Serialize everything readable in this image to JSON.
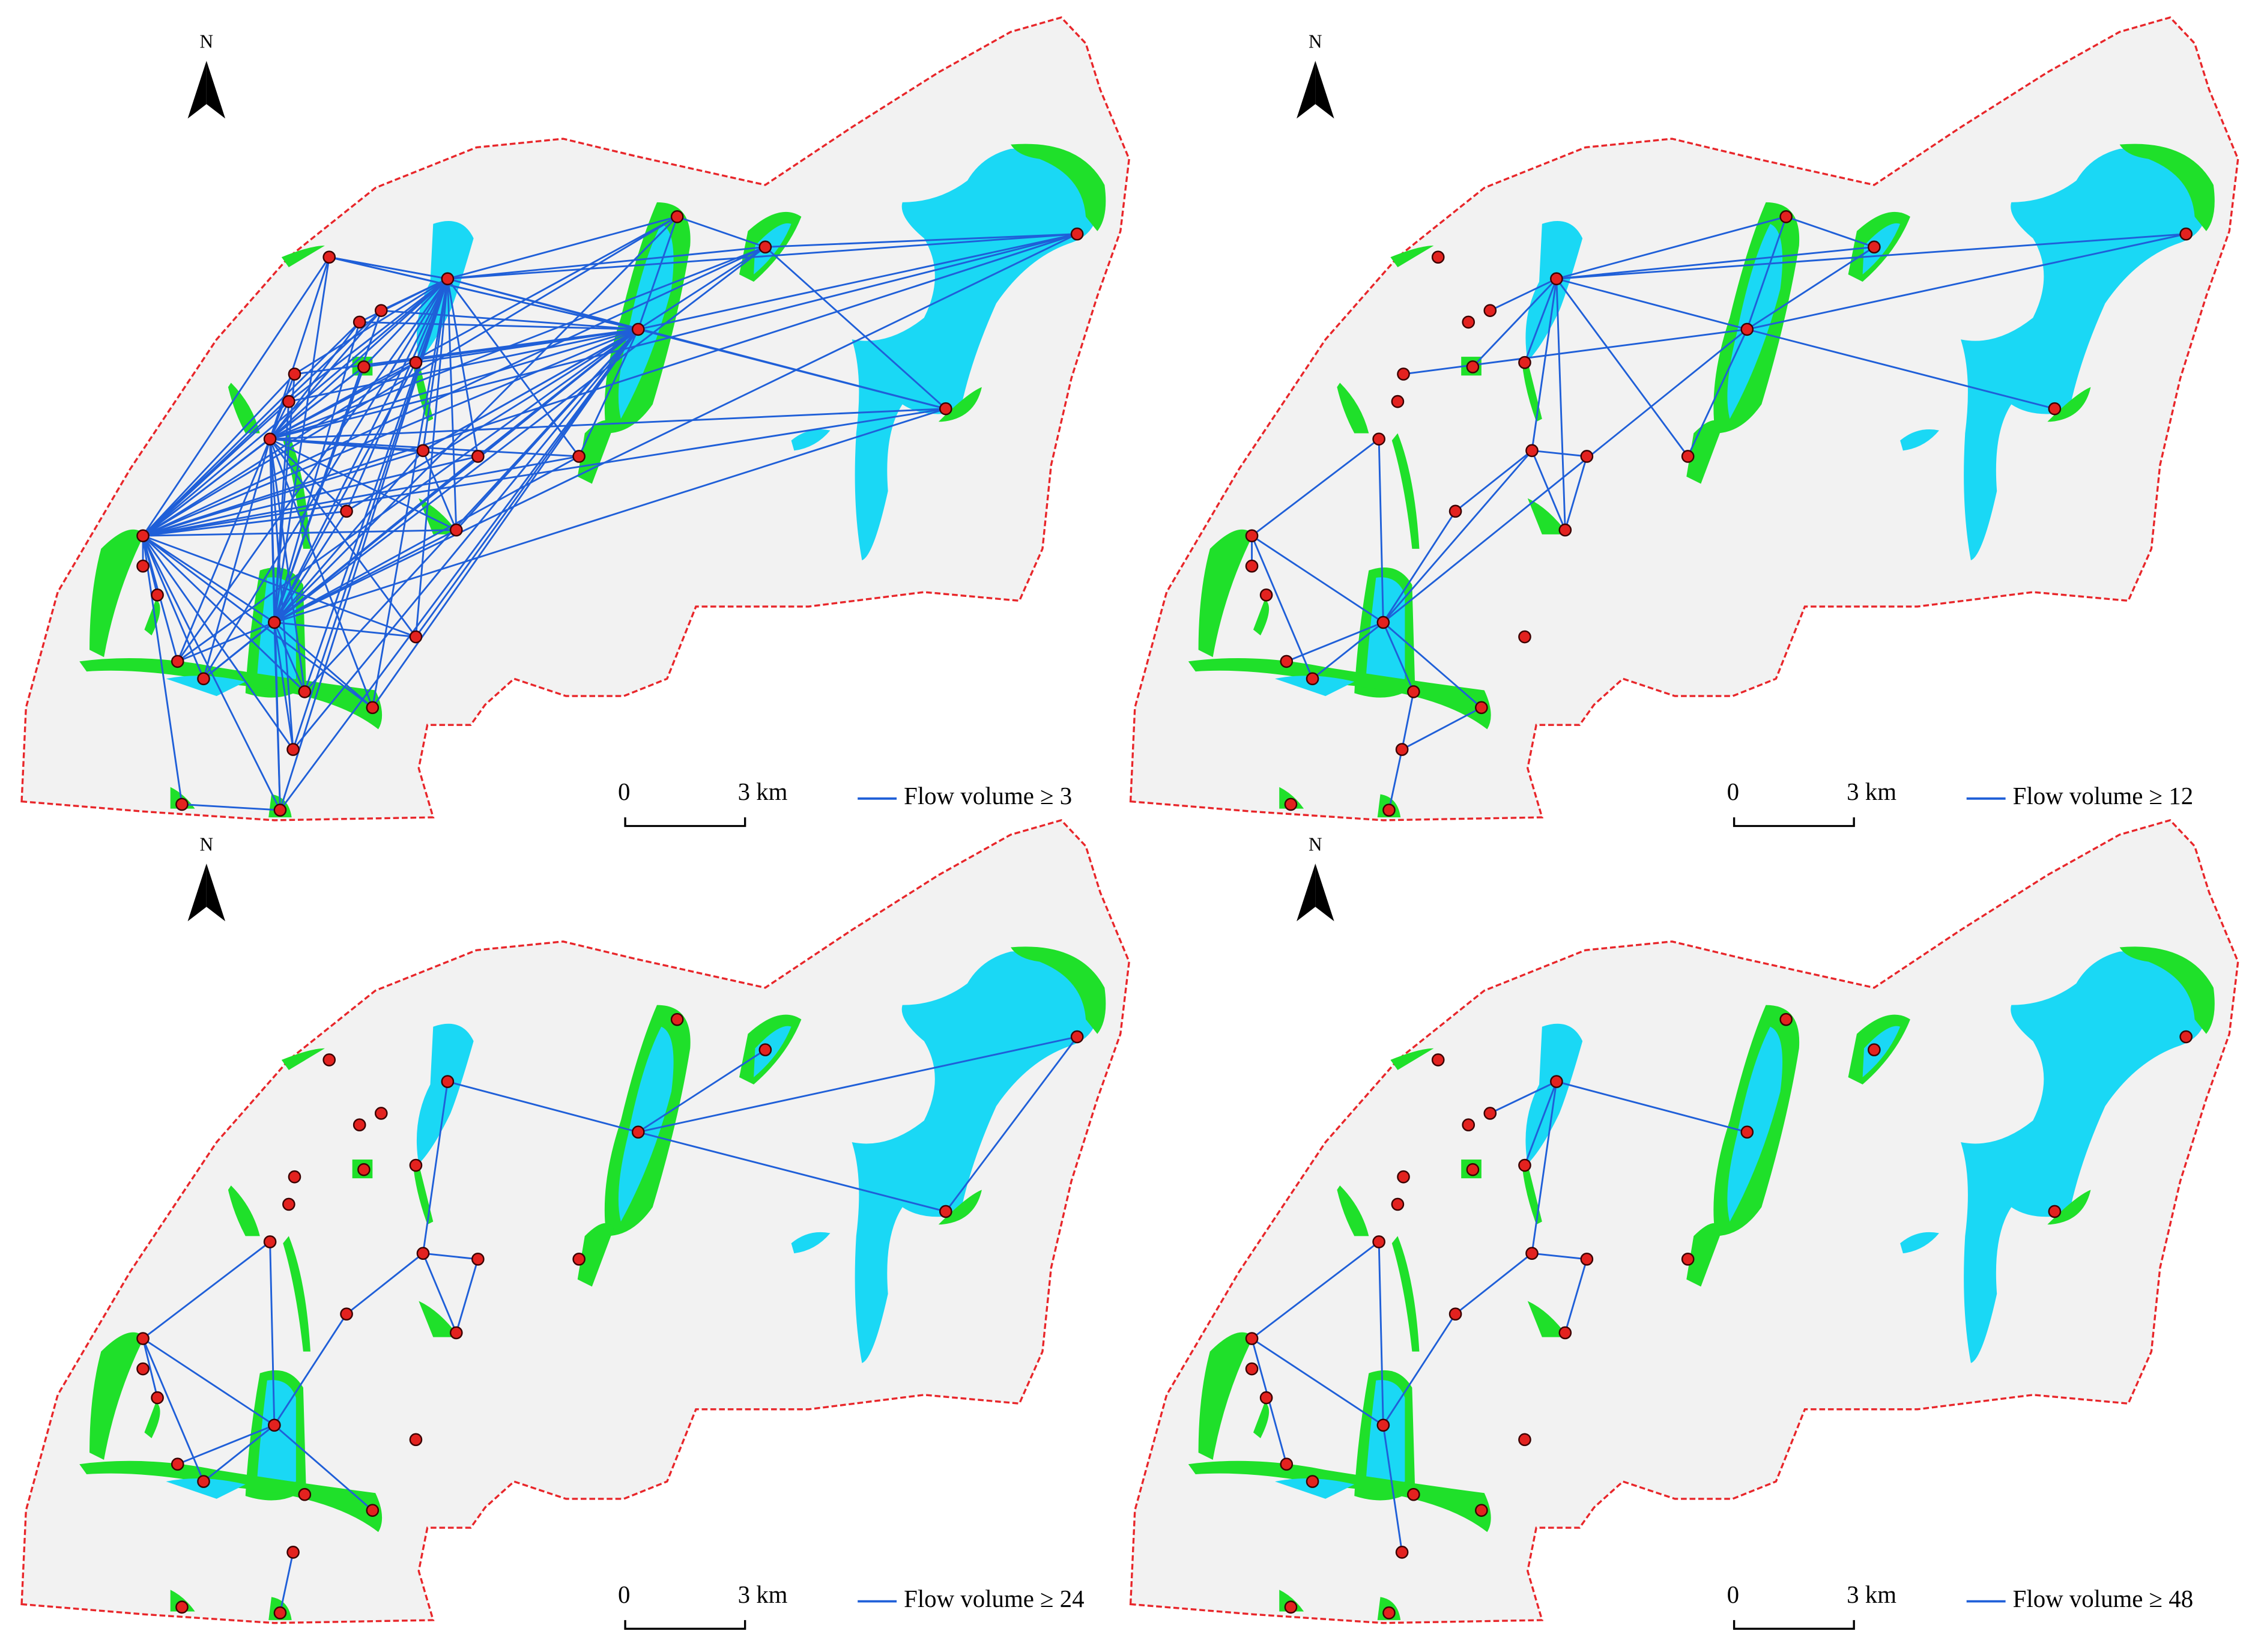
{
  "panels": [
    {
      "north_label": "N",
      "scale_start": "0",
      "scale_end": "3 km",
      "legend_label": "Flow volume ≥ 3"
    },
    {
      "north_label": "N",
      "scale_start": "0",
      "scale_end": "3 km",
      "legend_label": "Flow volume ≥ 12"
    },
    {
      "north_label": "N",
      "scale_start": "0",
      "scale_end": "3 km",
      "legend_label": "Flow volume ≥ 24"
    },
    {
      "north_label": "N",
      "scale_start": "0",
      "scale_end": "3 km",
      "legend_label": "Flow volume ≥ 48"
    }
  ]
}
